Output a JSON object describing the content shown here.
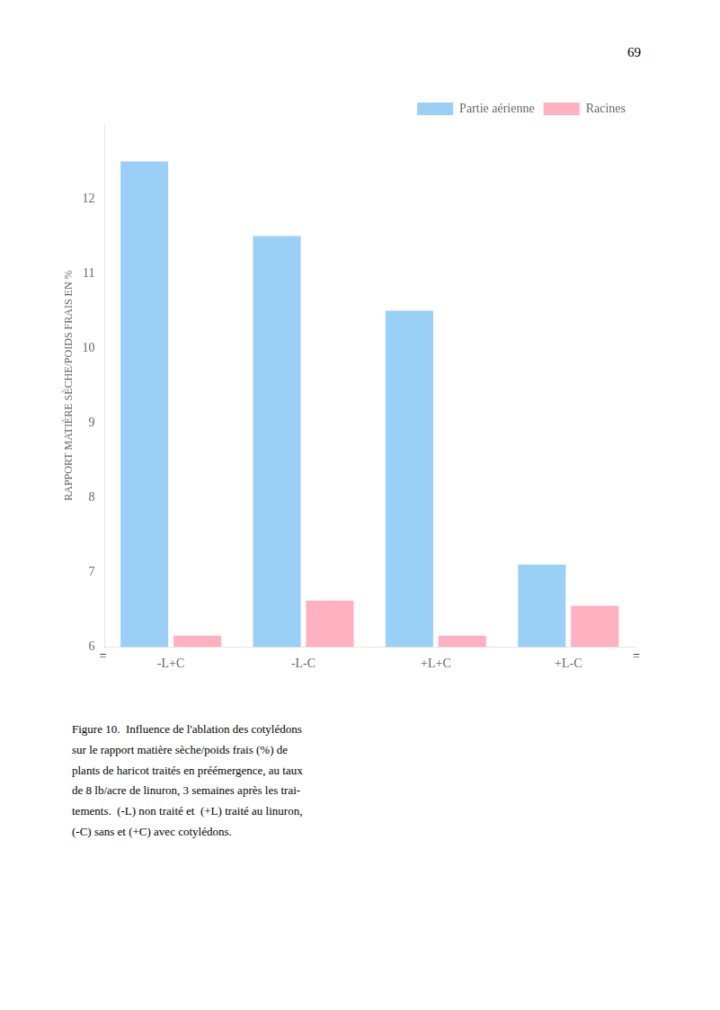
{
  "chart_data": {
    "type": "bar",
    "categories": [
      "-L+C",
      "-L-C",
      "+L+C",
      "+L-C"
    ],
    "series": [
      {
        "name": "Partie aérienne",
        "values": [
          12.5,
          11.5,
          10.5,
          7.1
        ]
      },
      {
        "name": "Racines",
        "values": [
          6.15,
          6.62,
          6.15,
          6.55
        ]
      }
    ],
    "ylabel": "RAPPORT MATIÈRE SÈCHE/POIDS FRAIS EN %",
    "ylim": [
      6.0,
      13.0
    ],
    "yticks": [
      6,
      7,
      8,
      9,
      10,
      11,
      12
    ],
    "grid": false,
    "legend": "upper right",
    "annotations": [
      "=",
      "="
    ],
    "page_number": "69",
    "caption": [
      "Figure 10.  Influence de l'ablation des cotylédons",
      "sur le rapport matière sèche/poids frais (%) de",
      "plants de haricot traités en préémergence, au taux",
      "de 8 lb/acre de linuron, 3 semaines après les trai-",
      "tements.  (-L) non traité et  (+L) traité au linuron,",
      "(-C) sans et (+C) avec cotylédons."
    ]
  }
}
